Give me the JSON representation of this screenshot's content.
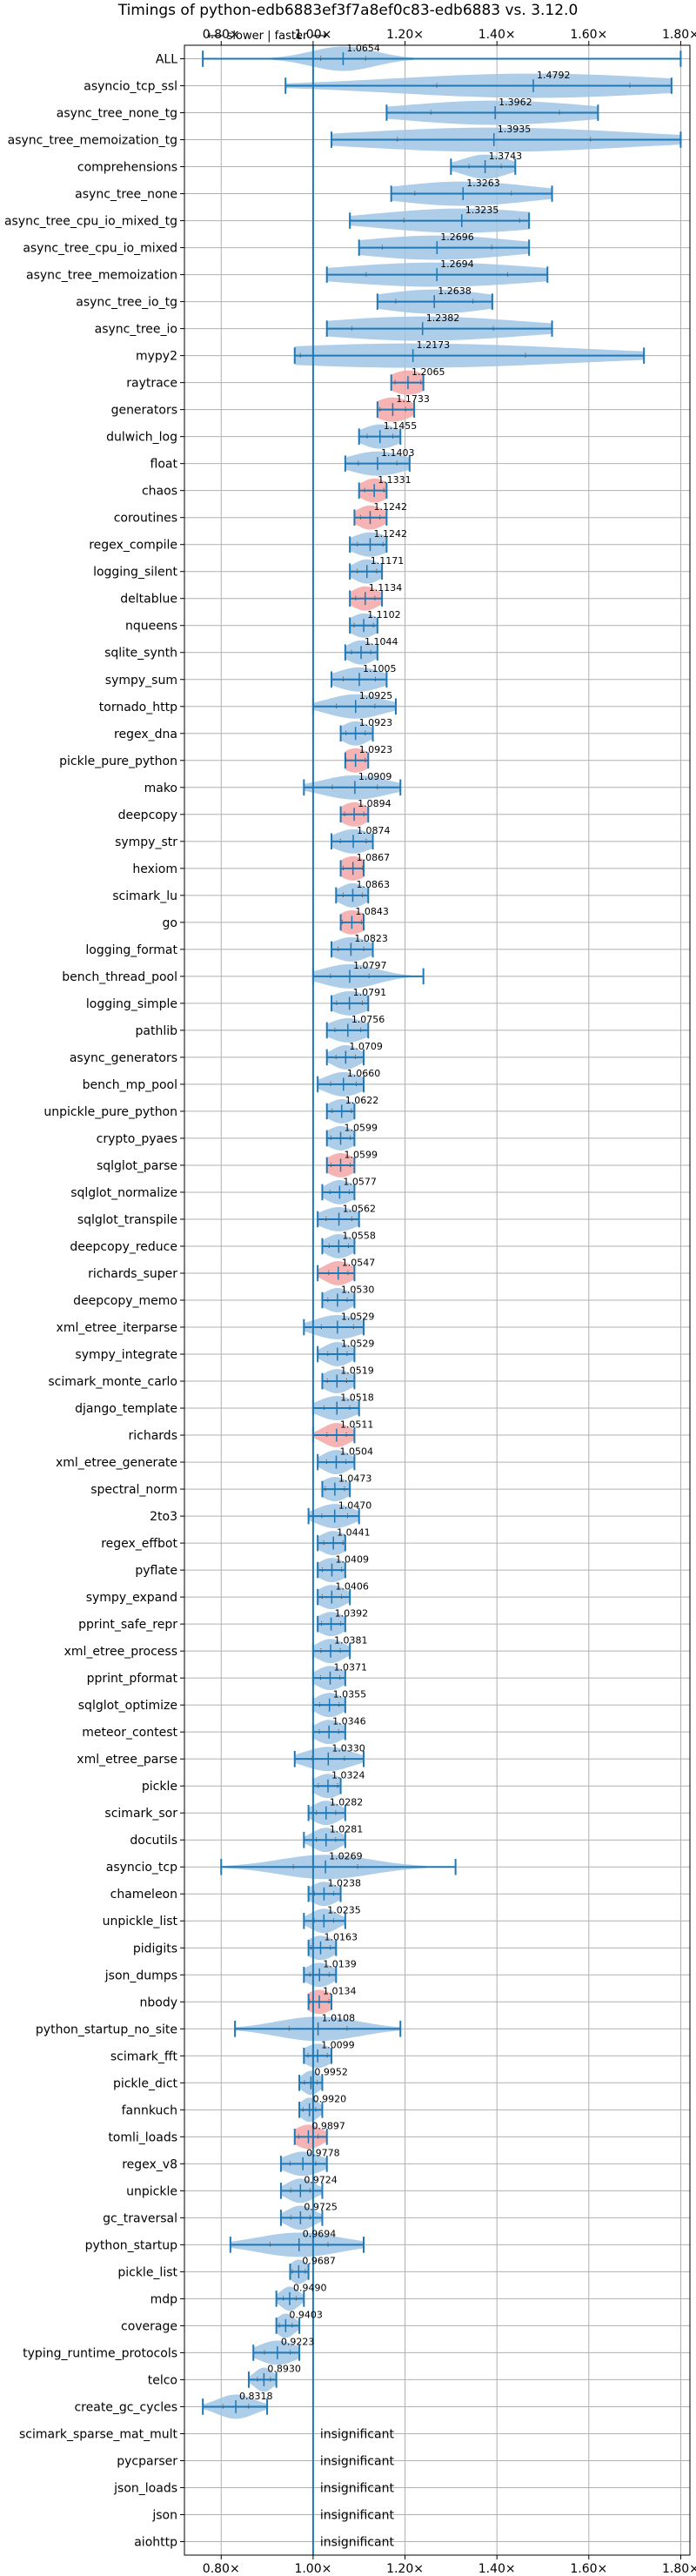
{
  "chart_data": {
    "type": "violin",
    "title": "Timings of python-edb6883ef3f7a8ef0c83-edb6883 vs. 3.12.0",
    "direction_label": "⟵ slower | faster ⟶",
    "xlim": [
      0.72,
      1.82
    ],
    "xticks": [
      0.8,
      1.0,
      1.2,
      1.4,
      1.6,
      1.8
    ],
    "xtick_labels": [
      "0.80×",
      "1.00×",
      "1.20×",
      "1.40×",
      "1.60×",
      "1.80×"
    ],
    "reference_value": 1.0,
    "insignificant_label": "insignificant",
    "colors": {
      "violin": "#9fc4e4",
      "highlight": "#f4a6a6",
      "line": "#1f77b4",
      "grid": "#b0b0b0"
    },
    "benchmarks": [
      {
        "name": "ALL",
        "value": 1.0654,
        "min": 0.76,
        "max": 1.8,
        "spread": 0.07,
        "highlight": false
      },
      {
        "name": "asyncio_tcp_ssl",
        "value": 1.4792,
        "min": 0.94,
        "max": 1.78,
        "spread": 0.3,
        "highlight": false
      },
      {
        "name": "async_tree_none_tg",
        "value": 1.3962,
        "min": 1.16,
        "max": 1.62,
        "spread": 0.2,
        "highlight": false
      },
      {
        "name": "async_tree_memoization_tg",
        "value": 1.3935,
        "min": 1.04,
        "max": 1.8,
        "spread": 0.3,
        "highlight": false
      },
      {
        "name": "comprehensions",
        "value": 1.3743,
        "min": 1.3,
        "max": 1.44,
        "spread": 0.05,
        "highlight": false
      },
      {
        "name": "async_tree_none",
        "value": 1.3263,
        "min": 1.17,
        "max": 1.52,
        "spread": 0.15,
        "highlight": false
      },
      {
        "name": "async_tree_cpu_io_mixed_tg",
        "value": 1.3235,
        "min": 1.08,
        "max": 1.47,
        "spread": 0.18,
        "highlight": false
      },
      {
        "name": "async_tree_cpu_io_mixed",
        "value": 1.2696,
        "min": 1.1,
        "max": 1.47,
        "spread": 0.17,
        "highlight": false
      },
      {
        "name": "async_tree_memoization",
        "value": 1.2694,
        "min": 1.03,
        "max": 1.51,
        "spread": 0.22,
        "highlight": false
      },
      {
        "name": "async_tree_io_tg",
        "value": 1.2638,
        "min": 1.14,
        "max": 1.39,
        "spread": 0.12,
        "highlight": false
      },
      {
        "name": "async_tree_io",
        "value": 1.2382,
        "min": 1.03,
        "max": 1.52,
        "spread": 0.22,
        "highlight": false
      },
      {
        "name": "mypy2",
        "value": 1.2173,
        "min": 0.96,
        "max": 1.72,
        "spread": 0.35,
        "highlight": false
      },
      {
        "name": "raytrace",
        "value": 1.2065,
        "min": 1.17,
        "max": 1.24,
        "spread": 0.04,
        "highlight": true
      },
      {
        "name": "generators",
        "value": 1.1733,
        "min": 1.14,
        "max": 1.22,
        "spread": 0.04,
        "highlight": true
      },
      {
        "name": "dulwich_log",
        "value": 1.1455,
        "min": 1.1,
        "max": 1.19,
        "spread": 0.04,
        "highlight": false
      },
      {
        "name": "float",
        "value": 1.1403,
        "min": 1.07,
        "max": 1.21,
        "spread": 0.06,
        "highlight": false
      },
      {
        "name": "chaos",
        "value": 1.1331,
        "min": 1.1,
        "max": 1.16,
        "spread": 0.03,
        "highlight": true
      },
      {
        "name": "coroutines",
        "value": 1.1242,
        "min": 1.09,
        "max": 1.16,
        "spread": 0.03,
        "highlight": true
      },
      {
        "name": "regex_compile",
        "value": 1.1242,
        "min": 1.08,
        "max": 1.16,
        "spread": 0.04,
        "highlight": false
      },
      {
        "name": "logging_silent",
        "value": 1.1171,
        "min": 1.08,
        "max": 1.15,
        "spread": 0.03,
        "highlight": false
      },
      {
        "name": "deltablue",
        "value": 1.1134,
        "min": 1.08,
        "max": 1.15,
        "spread": 0.03,
        "highlight": true
      },
      {
        "name": "nqueens",
        "value": 1.1102,
        "min": 1.08,
        "max": 1.14,
        "spread": 0.03,
        "highlight": false
      },
      {
        "name": "sqlite_synth",
        "value": 1.1044,
        "min": 1.07,
        "max": 1.14,
        "spread": 0.03,
        "highlight": false
      },
      {
        "name": "sympy_sum",
        "value": 1.1005,
        "min": 1.04,
        "max": 1.16,
        "spread": 0.05,
        "highlight": false
      },
      {
        "name": "tornado_http",
        "value": 1.0925,
        "min": 1.0,
        "max": 1.18,
        "spread": 0.06,
        "highlight": false
      },
      {
        "name": "regex_dna",
        "value": 1.0923,
        "min": 1.06,
        "max": 1.13,
        "spread": 0.03,
        "highlight": false
      },
      {
        "name": "pickle_pure_python",
        "value": 1.0923,
        "min": 1.07,
        "max": 1.12,
        "spread": 0.03,
        "highlight": true
      },
      {
        "name": "mako",
        "value": 1.0909,
        "min": 0.98,
        "max": 1.19,
        "spread": 0.07,
        "highlight": false
      },
      {
        "name": "deepcopy",
        "value": 1.0894,
        "min": 1.06,
        "max": 1.12,
        "spread": 0.03,
        "highlight": true
      },
      {
        "name": "sympy_str",
        "value": 1.0874,
        "min": 1.04,
        "max": 1.13,
        "spread": 0.04,
        "highlight": false
      },
      {
        "name": "hexiom",
        "value": 1.0867,
        "min": 1.06,
        "max": 1.11,
        "spread": 0.03,
        "highlight": true
      },
      {
        "name": "scimark_lu",
        "value": 1.0863,
        "min": 1.05,
        "max": 1.12,
        "spread": 0.03,
        "highlight": false
      },
      {
        "name": "go",
        "value": 1.0843,
        "min": 1.06,
        "max": 1.11,
        "spread": 0.03,
        "highlight": true
      },
      {
        "name": "logging_format",
        "value": 1.0823,
        "min": 1.04,
        "max": 1.13,
        "spread": 0.04,
        "highlight": false
      },
      {
        "name": "bench_thread_pool",
        "value": 1.0797,
        "min": 1.0,
        "max": 1.24,
        "spread": 0.06,
        "highlight": false
      },
      {
        "name": "logging_simple",
        "value": 1.0791,
        "min": 1.04,
        "max": 1.12,
        "spread": 0.04,
        "highlight": false
      },
      {
        "name": "pathlib",
        "value": 1.0756,
        "min": 1.03,
        "max": 1.12,
        "spread": 0.04,
        "highlight": false
      },
      {
        "name": "async_generators",
        "value": 1.0709,
        "min": 1.03,
        "max": 1.11,
        "spread": 0.03,
        "highlight": false
      },
      {
        "name": "bench_mp_pool",
        "value": 1.066,
        "min": 1.01,
        "max": 1.11,
        "spread": 0.04,
        "highlight": false
      },
      {
        "name": "unpickle_pure_python",
        "value": 1.0622,
        "min": 1.03,
        "max": 1.09,
        "spread": 0.03,
        "highlight": false
      },
      {
        "name": "crypto_pyaes",
        "value": 1.0599,
        "min": 1.03,
        "max": 1.09,
        "spread": 0.03,
        "highlight": false
      },
      {
        "name": "sqlglot_parse",
        "value": 1.0599,
        "min": 1.03,
        "max": 1.09,
        "spread": 0.03,
        "highlight": true
      },
      {
        "name": "sqlglot_normalize",
        "value": 1.0577,
        "min": 1.02,
        "max": 1.09,
        "spread": 0.03,
        "highlight": false
      },
      {
        "name": "sqlglot_transpile",
        "value": 1.0562,
        "min": 1.01,
        "max": 1.1,
        "spread": 0.04,
        "highlight": false
      },
      {
        "name": "deepcopy_reduce",
        "value": 1.0558,
        "min": 1.02,
        "max": 1.09,
        "spread": 0.03,
        "highlight": false
      },
      {
        "name": "richards_super",
        "value": 1.0547,
        "min": 1.01,
        "max": 1.09,
        "spread": 0.03,
        "highlight": true
      },
      {
        "name": "deepcopy_memo",
        "value": 1.053,
        "min": 1.02,
        "max": 1.09,
        "spread": 0.03,
        "highlight": false
      },
      {
        "name": "xml_etree_iterparse",
        "value": 1.0529,
        "min": 0.98,
        "max": 1.11,
        "spread": 0.05,
        "highlight": false
      },
      {
        "name": "sympy_integrate",
        "value": 1.0529,
        "min": 1.01,
        "max": 1.09,
        "spread": 0.03,
        "highlight": false
      },
      {
        "name": "scimark_monte_carlo",
        "value": 1.0519,
        "min": 1.02,
        "max": 1.09,
        "spread": 0.03,
        "highlight": false
      },
      {
        "name": "django_template",
        "value": 1.0518,
        "min": 1.0,
        "max": 1.1,
        "spread": 0.04,
        "highlight": false
      },
      {
        "name": "richards",
        "value": 1.0511,
        "min": 1.0,
        "max": 1.09,
        "spread": 0.03,
        "highlight": true
      },
      {
        "name": "xml_etree_generate",
        "value": 1.0504,
        "min": 1.01,
        "max": 1.09,
        "spread": 0.03,
        "highlight": false
      },
      {
        "name": "spectral_norm",
        "value": 1.0473,
        "min": 1.02,
        "max": 1.08,
        "spread": 0.03,
        "highlight": false
      },
      {
        "name": "2to3",
        "value": 1.047,
        "min": 0.99,
        "max": 1.1,
        "spread": 0.04,
        "highlight": false
      },
      {
        "name": "regex_effbot",
        "value": 1.0441,
        "min": 1.01,
        "max": 1.07,
        "spread": 0.03,
        "highlight": false
      },
      {
        "name": "pyflate",
        "value": 1.0409,
        "min": 1.01,
        "max": 1.07,
        "spread": 0.03,
        "highlight": false
      },
      {
        "name": "sympy_expand",
        "value": 1.0406,
        "min": 1.01,
        "max": 1.08,
        "spread": 0.03,
        "highlight": false
      },
      {
        "name": "pprint_safe_repr",
        "value": 1.0392,
        "min": 1.01,
        "max": 1.07,
        "spread": 0.03,
        "highlight": false
      },
      {
        "name": "xml_etree_process",
        "value": 1.0381,
        "min": 1.0,
        "max": 1.08,
        "spread": 0.03,
        "highlight": false
      },
      {
        "name": "pprint_pformat",
        "value": 1.0371,
        "min": 1.0,
        "max": 1.07,
        "spread": 0.03,
        "highlight": false
      },
      {
        "name": "sqlglot_optimize",
        "value": 1.0355,
        "min": 1.0,
        "max": 1.07,
        "spread": 0.03,
        "highlight": false
      },
      {
        "name": "meteor_contest",
        "value": 1.0346,
        "min": 1.0,
        "max": 1.07,
        "spread": 0.03,
        "highlight": false
      },
      {
        "name": "xml_etree_parse",
        "value": 1.033,
        "min": 0.96,
        "max": 1.11,
        "spread": 0.05,
        "highlight": false
      },
      {
        "name": "pickle",
        "value": 1.0324,
        "min": 1.0,
        "max": 1.06,
        "spread": 0.03,
        "highlight": false
      },
      {
        "name": "scimark_sor",
        "value": 1.0282,
        "min": 0.99,
        "max": 1.07,
        "spread": 0.03,
        "highlight": false
      },
      {
        "name": "docutils",
        "value": 1.0281,
        "min": 0.98,
        "max": 1.07,
        "spread": 0.03,
        "highlight": false
      },
      {
        "name": "asyncio_tcp",
        "value": 1.0269,
        "min": 0.8,
        "max": 1.31,
        "spread": 0.1,
        "highlight": false
      },
      {
        "name": "chameleon",
        "value": 1.0238,
        "min": 0.99,
        "max": 1.06,
        "spread": 0.03,
        "highlight": false
      },
      {
        "name": "unpickle_list",
        "value": 1.0235,
        "min": 0.98,
        "max": 1.07,
        "spread": 0.03,
        "highlight": false
      },
      {
        "name": "pidigits",
        "value": 1.0163,
        "min": 0.99,
        "max": 1.05,
        "spread": 0.03,
        "highlight": false
      },
      {
        "name": "json_dumps",
        "value": 1.0139,
        "min": 0.98,
        "max": 1.05,
        "spread": 0.03,
        "highlight": false
      },
      {
        "name": "nbody",
        "value": 1.0134,
        "min": 0.99,
        "max": 1.04,
        "spread": 0.03,
        "highlight": true
      },
      {
        "name": "python_startup_no_site",
        "value": 1.0108,
        "min": 0.83,
        "max": 1.19,
        "spread": 0.09,
        "highlight": false
      },
      {
        "name": "scimark_fft",
        "value": 1.0099,
        "min": 0.98,
        "max": 1.04,
        "spread": 0.03,
        "highlight": false
      },
      {
        "name": "pickle_dict",
        "value": 0.9952,
        "min": 0.97,
        "max": 1.02,
        "spread": 0.02,
        "highlight": false
      },
      {
        "name": "fannkuch",
        "value": 0.992,
        "min": 0.97,
        "max": 1.02,
        "spread": 0.02,
        "highlight": false
      },
      {
        "name": "tomli_loads",
        "value": 0.9897,
        "min": 0.96,
        "max": 1.03,
        "spread": 0.03,
        "highlight": true
      },
      {
        "name": "regex_v8",
        "value": 0.9778,
        "min": 0.93,
        "max": 1.03,
        "spread": 0.04,
        "highlight": false
      },
      {
        "name": "unpickle",
        "value": 0.9724,
        "min": 0.93,
        "max": 1.02,
        "spread": 0.03,
        "highlight": false
      },
      {
        "name": "gc_traversal",
        "value": 0.9725,
        "min": 0.93,
        "max": 1.02,
        "spread": 0.03,
        "highlight": false
      },
      {
        "name": "python_startup",
        "value": 0.9694,
        "min": 0.82,
        "max": 1.11,
        "spread": 0.09,
        "highlight": false
      },
      {
        "name": "pickle_list",
        "value": 0.9687,
        "min": 0.95,
        "max": 0.99,
        "spread": 0.02,
        "highlight": false
      },
      {
        "name": "mdp",
        "value": 0.949,
        "min": 0.92,
        "max": 0.98,
        "spread": 0.02,
        "highlight": false
      },
      {
        "name": "coverage",
        "value": 0.9403,
        "min": 0.92,
        "max": 0.97,
        "spread": 0.02,
        "highlight": false
      },
      {
        "name": "typing_runtime_protocols",
        "value": 0.9223,
        "min": 0.87,
        "max": 0.97,
        "spread": 0.04,
        "highlight": false
      },
      {
        "name": "telco",
        "value": 0.893,
        "min": 0.86,
        "max": 0.92,
        "spread": 0.02,
        "highlight": false
      },
      {
        "name": "create_gc_cycles",
        "value": 0.8318,
        "min": 0.76,
        "max": 0.9,
        "spread": 0.04,
        "highlight": false
      },
      {
        "name": "scimark_sparse_mat_mult",
        "insignificant": true
      },
      {
        "name": "pycparser",
        "insignificant": true
      },
      {
        "name": "json_loads",
        "insignificant": true
      },
      {
        "name": "json",
        "insignificant": true
      },
      {
        "name": "aiohttp",
        "insignificant": true
      }
    ]
  }
}
